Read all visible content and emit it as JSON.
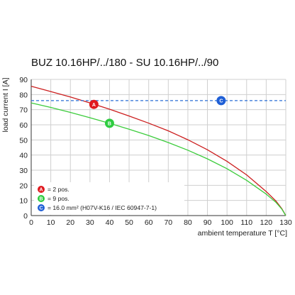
{
  "chart_data": {
    "type": "line",
    "title": "BUZ 10.16HP/../180 - SU 10.16HP/../90",
    "xlabel": "ambient temperature T [°C]",
    "ylabel": "load current I [A]",
    "xlim": [
      0,
      130
    ],
    "ylim": [
      0,
      90
    ],
    "x_ticks": [
      0,
      10,
      20,
      30,
      40,
      50,
      60,
      70,
      80,
      90,
      100,
      110,
      120,
      130
    ],
    "y_ticks": [
      0,
      10,
      20,
      30,
      40,
      50,
      60,
      70,
      80,
      90
    ],
    "grid": true,
    "legend_position": "bottom-left",
    "series": [
      {
        "marker": "A",
        "legend": "= 2 pos.",
        "color": "#cc1f1f",
        "marker_color": "#e0191f",
        "style": "solid",
        "marker_at": [
          32,
          73.5
        ],
        "x": [
          0,
          10,
          20,
          30,
          40,
          50,
          60,
          70,
          80,
          90,
          100,
          110,
          120,
          125,
          128,
          130
        ],
        "y": [
          85.5,
          82.0,
          78.4,
          74.5,
          70.3,
          65.8,
          61.1,
          56.0,
          50.1,
          43.5,
          35.8,
          26.9,
          15.9,
          9.6,
          4.5,
          0
        ]
      },
      {
        "marker": "B",
        "legend": "= 9 pos.",
        "color": "#3ccc3c",
        "marker_color": "#2ecc40",
        "style": "solid",
        "marker_at": [
          40,
          61
        ],
        "x": [
          0,
          10,
          20,
          30,
          40,
          50,
          60,
          70,
          80,
          90,
          100,
          110,
          120,
          125,
          128,
          130
        ],
        "y": [
          74.5,
          71.5,
          68.2,
          64.7,
          61.0,
          57.1,
          52.9,
          48.3,
          43.2,
          37.5,
          31.0,
          23.3,
          14.2,
          8.7,
          4.2,
          0
        ]
      },
      {
        "marker": "C",
        "legend": "= 16.0 mm² (H07V-K16 / IEC 60947-7-1)",
        "color": "#2a6fd6",
        "marker_color": "#1f5fd6",
        "style": "dashed",
        "marker_at": [
          97,
          76
        ],
        "x": [
          0,
          130
        ],
        "y": [
          76,
          76
        ]
      }
    ]
  }
}
